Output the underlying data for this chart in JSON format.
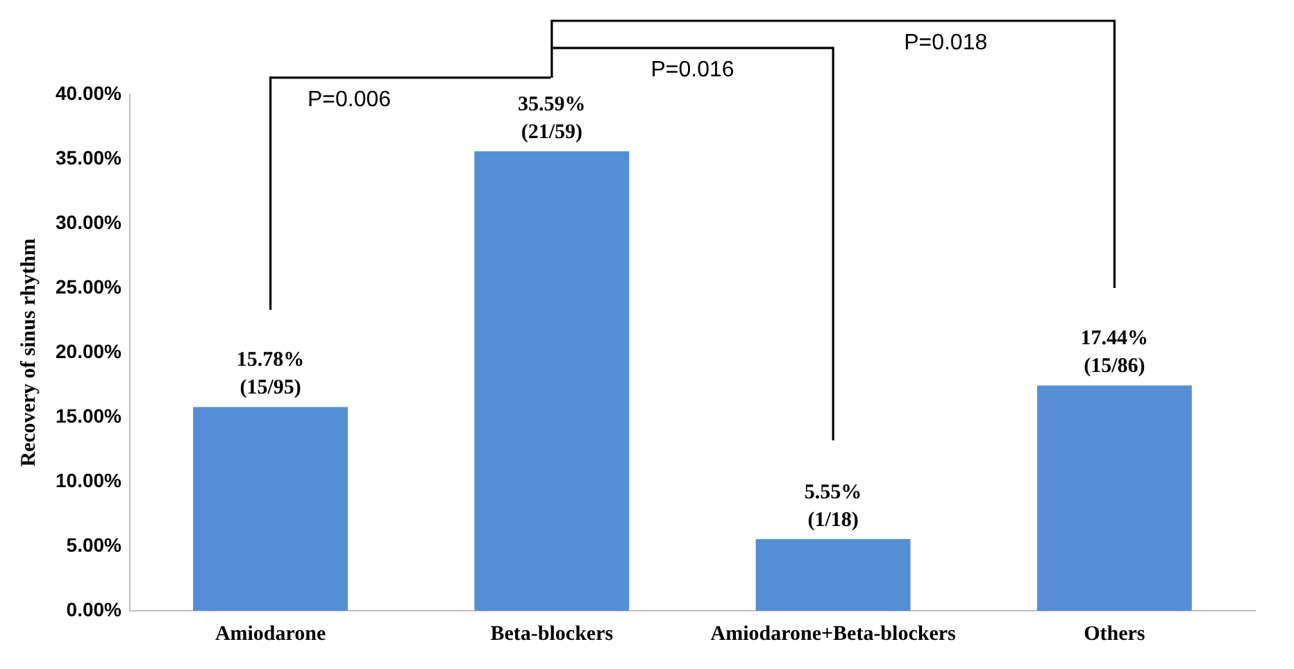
{
  "chart_data": {
    "type": "bar",
    "ylabel": "Recovery of sinus rhythm",
    "categories": [
      "Amiodarone",
      "Beta-blockers",
      "Amiodarone+Beta-blockers",
      "Others"
    ],
    "values": [
      15.78,
      35.59,
      5.55,
      17.44
    ],
    "value_labels": [
      "15.78%\n(15/95)",
      "35.59%\n(21/59)",
      "5.55%\n(1/18)",
      "17.44%\n(15/86)"
    ],
    "color": "#558ed5",
    "ylim": [
      0,
      40
    ],
    "yticks": [
      {
        "value": 0,
        "label": "0.00%"
      },
      {
        "value": 5,
        "label": "5.00%"
      },
      {
        "value": 10,
        "label": "10.00%"
      },
      {
        "value": 15,
        "label": "15.00%"
      },
      {
        "value": 20,
        "label": "20.00%"
      },
      {
        "value": 25,
        "label": "25.00%"
      },
      {
        "value": 30,
        "label": "30.00%"
      },
      {
        "value": 35,
        "label": "35.00%"
      },
      {
        "value": 40,
        "label": "40.00%"
      }
    ],
    "grid": false,
    "legend": false,
    "annotations": [
      "P=0.006",
      "P=0.016",
      "P=0.018"
    ]
  }
}
